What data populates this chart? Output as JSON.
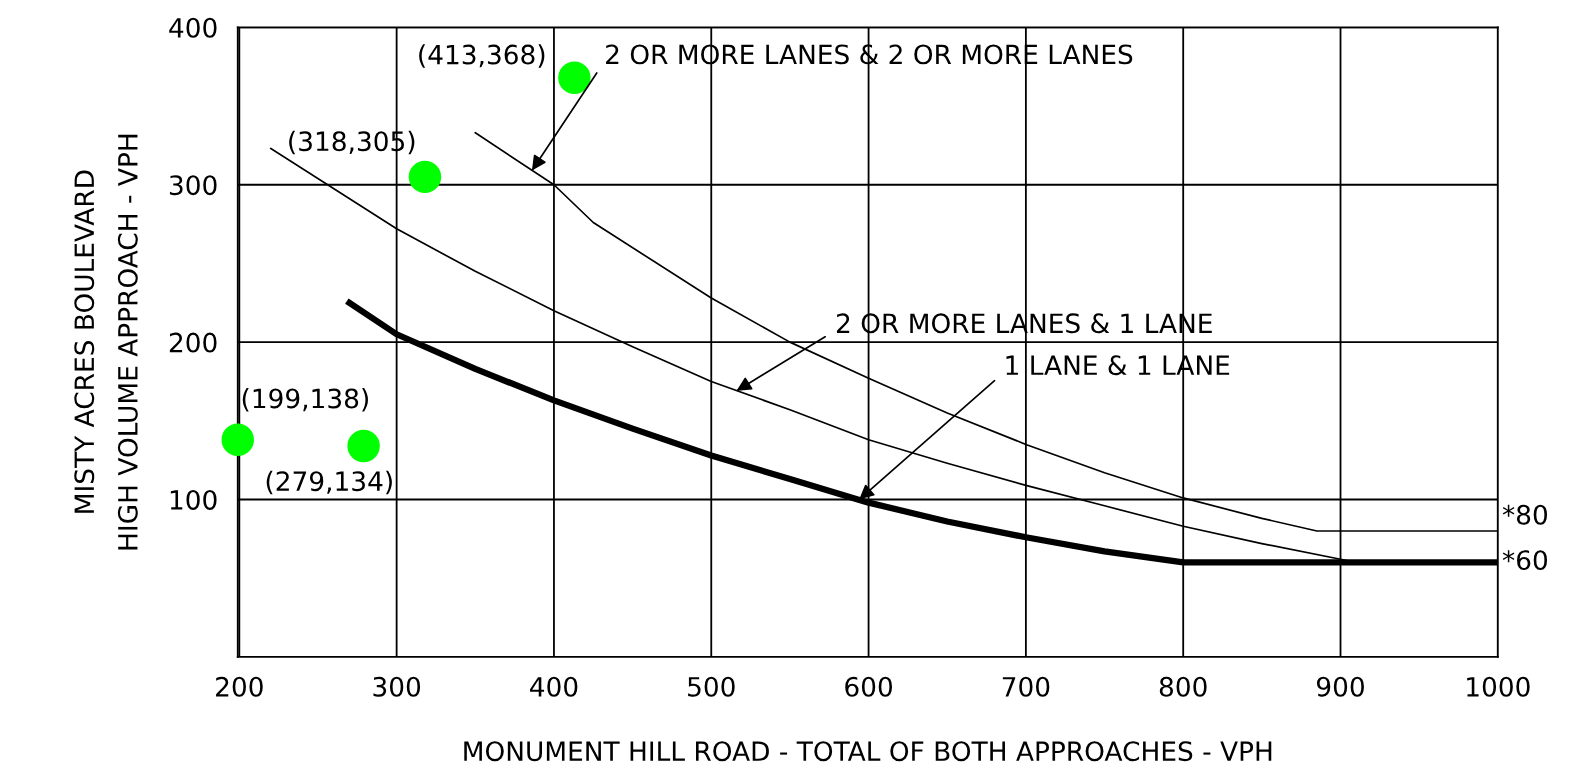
{
  "chart_data": {
    "type": "line",
    "xlabel": "MONUMENT HILL ROAD - TOTAL OF BOTH APPROACHES - VPH",
    "ylabel": "MISTY ACRES BOULEVARD\nHIGH VOLUME APPROACH - VPH",
    "xlim": [
      199,
      1000
    ],
    "xticks": [
      200,
      300,
      400,
      500,
      600,
      700,
      800,
      900,
      1000
    ],
    "ylim": [
      0,
      400
    ],
    "yticks": [
      100,
      200,
      300,
      400
    ],
    "grid": true,
    "series": [
      {
        "color": "#000000",
        "x": [
          350,
          400,
          425,
          500,
          550,
          600,
          650,
          700,
          750,
          800,
          850,
          885,
          1000
        ],
        "values": [
          333,
          300,
          276,
          228,
          200,
          177,
          155,
          135,
          117,
          101,
          88,
          80,
          80
        ]
      },
      {
        "color": "#000000",
        "x": [
          220,
          300,
          350,
          400,
          450,
          500,
          550,
          600,
          650,
          700,
          750,
          800,
          850,
          900,
          910,
          1000
        ],
        "values": [
          323,
          272,
          245,
          220,
          197,
          175,
          157,
          138,
          123,
          109,
          96,
          83,
          72,
          62,
          60,
          60
        ]
      },
      {
        "color": "#000000",
        "x": [
          270,
          300,
          350,
          400,
          450,
          500,
          550,
          600,
          650,
          700,
          750,
          800,
          1000
        ],
        "values": [
          225,
          205,
          183,
          163,
          145,
          128,
          113,
          98,
          86,
          76,
          67,
          60,
          60
        ]
      },
      {
        "type": "scatter",
        "color": "#00ff00",
        "marker": "circle",
        "x": [
          199,
          279,
          318,
          413
        ],
        "values": [
          138,
          134,
          305,
          368
        ]
      }
    ],
    "annotations": [
      {
        "text": "2 OR MORE LANES & 2 OR MORE LANES",
        "x": 386,
        "y": 309
      },
      {
        "text": "2 OR MORE LANES & 1 LANE",
        "x": 516,
        "y": 169
      },
      {
        "text": "1 LANE & 1 LANE",
        "x": 594,
        "y": 100
      },
      {
        "text": "(199,138)",
        "x": 199,
        "y": 138
      },
      {
        "text": "(279,134)",
        "x": 279,
        "y": 134
      },
      {
        "text": "(318,305)",
        "x": 318,
        "y": 305
      },
      {
        "text": "(413,368)",
        "x": 413,
        "y": 368
      },
      {
        "text": "*80",
        "x": 1000,
        "y": 80
      },
      {
        "text": "*60",
        "x": 1000,
        "y": 60
      }
    ]
  }
}
